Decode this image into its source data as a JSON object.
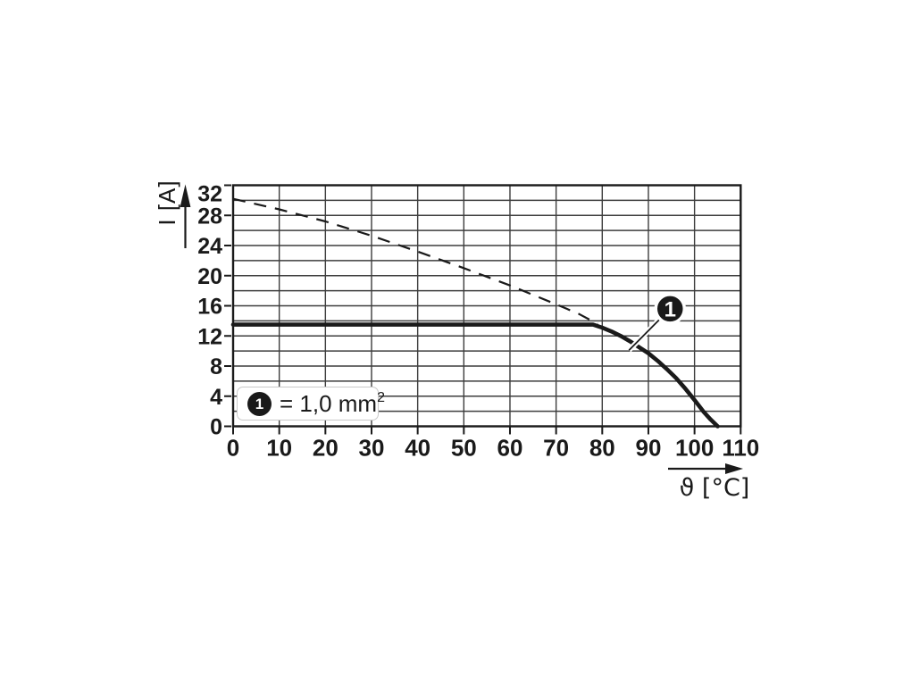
{
  "figure": {
    "background": "#ffffff",
    "ink_color": "#1a1a1a",
    "grid_color": "#3d3d3d",
    "legend_border_color": "#c9c9c9"
  },
  "chart_data": {
    "type": "line",
    "title": "",
    "xlabel": "ϑ [°C]",
    "ylabel": "I [A]",
    "xlim": [
      0,
      110
    ],
    "ylim": [
      0,
      32
    ],
    "x_ticks": [
      0,
      10,
      20,
      30,
      40,
      50,
      60,
      70,
      80,
      90,
      100,
      110
    ],
    "y_ticks": [
      0,
      4,
      8,
      12,
      16,
      20,
      24,
      28,
      32
    ],
    "x_grid_step": 10,
    "y_grid_step": 2,
    "grid": true,
    "legend_position": "inside-bottom-left",
    "series": [
      {
        "name": "reference-limit-dashed",
        "style": "dashed",
        "points": [
          [
            0,
            30.2
          ],
          [
            10,
            28.8
          ],
          [
            20,
            27.2
          ],
          [
            30,
            25.3
          ],
          [
            40,
            23.2
          ],
          [
            50,
            21.0
          ],
          [
            60,
            18.7
          ],
          [
            70,
            16.2
          ],
          [
            75,
            14.9
          ],
          [
            79,
            13.6
          ]
        ]
      },
      {
        "name": "curve-1-load-current",
        "style": "solid",
        "points": [
          [
            0,
            13.5
          ],
          [
            78,
            13.5
          ],
          [
            80,
            13.1
          ],
          [
            82,
            12.6
          ],
          [
            84,
            12.0
          ],
          [
            86,
            11.3
          ],
          [
            88,
            10.5
          ],
          [
            90,
            9.7
          ],
          [
            92,
            8.7
          ],
          [
            94,
            7.6
          ],
          [
            96,
            6.4
          ],
          [
            98,
            5.0
          ],
          [
            100,
            3.5
          ],
          [
            102,
            1.9
          ],
          [
            103.5,
            0.9
          ],
          [
            105,
            0
          ]
        ]
      }
    ],
    "callout": {
      "label": "1",
      "x": 94.7,
      "y": 15.6,
      "target_x": 85.8,
      "target_y": 10.1
    },
    "legend": {
      "marker_label": "1",
      "text": "= 1,0 mm",
      "superscript": "2"
    }
  }
}
